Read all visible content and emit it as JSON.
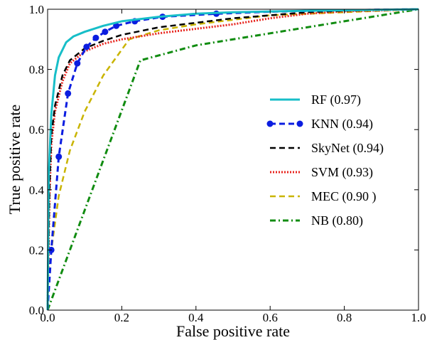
{
  "chart_data": {
    "type": "line",
    "title": "",
    "xlabel": "False positive rate",
    "ylabel": "True positive rate",
    "xlim": [
      0,
      1
    ],
    "ylim": [
      0,
      1
    ],
    "xticks": [
      "0.0",
      "0.2",
      "0.4",
      "0.6",
      "0.8",
      "1.0"
    ],
    "yticks": [
      "0.0",
      "0.2",
      "0.4",
      "0.6",
      "0.8",
      "1.0"
    ],
    "grid": false,
    "legend_position": "right",
    "series": [
      {
        "name": "RF (0.97)",
        "color": "#17bec8",
        "style": "solid",
        "x": [
          0,
          0.003,
          0.01,
          0.02,
          0.03,
          0.05,
          0.07,
          0.1,
          0.15,
          0.2,
          0.3,
          0.4,
          0.5,
          0.7,
          1.0
        ],
        "y": [
          0,
          0.45,
          0.65,
          0.78,
          0.84,
          0.89,
          0.91,
          0.925,
          0.945,
          0.96,
          0.975,
          0.985,
          0.99,
          0.995,
          1.0
        ]
      },
      {
        "name": "KNN (0.94)",
        "color": "#0b1de0",
        "style": "dashed-circle",
        "x": [
          0,
          0.01,
          0.03,
          0.055,
          0.08,
          0.105,
          0.13,
          0.155,
          0.185,
          0.235,
          0.31,
          0.455,
          0.6,
          0.8,
          1.0
        ],
        "y": [
          0,
          0.2,
          0.51,
          0.72,
          0.82,
          0.875,
          0.905,
          0.925,
          0.945,
          0.96,
          0.975,
          0.985,
          0.992,
          0.997,
          1.0
        ]
      },
      {
        "name": "SkyNet (0.94)",
        "color": "#000000",
        "style": "dashed",
        "x": [
          0,
          0.005,
          0.01,
          0.02,
          0.04,
          0.06,
          0.1,
          0.15,
          0.2,
          0.3,
          0.4,
          0.5,
          0.6,
          0.7,
          0.8,
          1.0
        ],
        "y": [
          0,
          0.4,
          0.58,
          0.68,
          0.78,
          0.83,
          0.87,
          0.895,
          0.915,
          0.94,
          0.955,
          0.97,
          0.98,
          0.99,
          0.995,
          1.0
        ]
      },
      {
        "name": "SVM (0.93)",
        "color": "#e8261f",
        "style": "dotted",
        "x": [
          0,
          0.005,
          0.01,
          0.02,
          0.04,
          0.06,
          0.1,
          0.15,
          0.2,
          0.3,
          0.4,
          0.5,
          0.6,
          0.7,
          0.8,
          1.0
        ],
        "y": [
          0,
          0.38,
          0.55,
          0.66,
          0.76,
          0.82,
          0.86,
          0.885,
          0.9,
          0.92,
          0.935,
          0.95,
          0.97,
          0.985,
          0.993,
          1.0
        ]
      },
      {
        "name": "MEC (0.90 )",
        "color": "#c9b400",
        "style": "dashed",
        "x": [
          0,
          0.01,
          0.03,
          0.06,
          0.1,
          0.15,
          0.22,
          0.3,
          0.4,
          0.5,
          0.6,
          0.8,
          1.0
        ],
        "y": [
          0,
          0.2,
          0.38,
          0.53,
          0.66,
          0.78,
          0.9,
          0.93,
          0.95,
          0.965,
          0.98,
          0.99,
          1.0
        ]
      },
      {
        "name": "NB (0.80)",
        "color": "#118c11",
        "style": "dash-dot",
        "x": [
          0,
          0.25,
          0.4,
          0.6,
          0.8,
          1.0
        ],
        "y": [
          0,
          0.83,
          0.88,
          0.92,
          0.96,
          1.0
        ]
      }
    ]
  }
}
